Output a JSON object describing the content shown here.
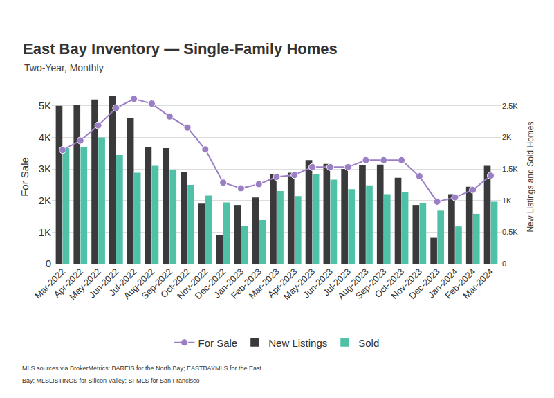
{
  "chart_data": {
    "type": "bar",
    "title": "East Bay Inventory — Single-Family Homes",
    "subtitle": "Two-Year, Monthly",
    "source_lines": [
      "MLS sources via BrokerMetrics: BAREIS for the North Bay; EASTBAYMLS for the East",
      "Bay; MLSLISTINGS for Silicon Valley; SFMLS for San Francisco"
    ],
    "ylabel": "For Sale",
    "y2label": "New Listings and Sold Homes",
    "categories": [
      "Mar-2022",
      "Apr-2022",
      "May-2022",
      "Jun-2022",
      "Jul-2022",
      "Aug-2022",
      "Sep-2022",
      "Oct-2022",
      "Nov-2022",
      "Dec-2022",
      "Jan-2023",
      "Feb-2023",
      "Mar-2023",
      "Apr-2023",
      "May-2023",
      "Jun-2023",
      "Jul-2023",
      "Aug-2023",
      "Sep-2023",
      "Oct-2023",
      "Nov-2023",
      "Dec-2023",
      "Jan-2024",
      "Feb-2024",
      "Mar-2024"
    ],
    "series": [
      {
        "name": "For Sale",
        "type": "line",
        "color": "#9b7fc4",
        "marker": "circle",
        "values": [
          3600,
          3900,
          4380,
          4930,
          5220,
          5070,
          4660,
          4310,
          3620,
          2570,
          2390,
          2520,
          2750,
          2810,
          3060,
          3060,
          3060,
          3280,
          3280,
          3280,
          2770,
          1960,
          2100,
          2340,
          2790
        ]
      },
      {
        "name": "New Listings",
        "type": "bar",
        "axis": "y2",
        "color": "#3a3a3c",
        "values": [
          2500,
          2520,
          2600,
          2660,
          2300,
          1850,
          1830,
          1450,
          950,
          460,
          930,
          1050,
          1420,
          1440,
          1640,
          1580,
          1500,
          1560,
          1570,
          1360,
          930,
          410,
          1100,
          1220,
          1550
        ]
      },
      {
        "name": "Sold",
        "type": "bar",
        "axis": "y2",
        "color": "#4fc1a6",
        "values": [
          1830,
          1850,
          2000,
          1720,
          1440,
          1550,
          1480,
          1250,
          1080,
          970,
          600,
          690,
          1150,
          1070,
          1420,
          1330,
          1180,
          1240,
          1100,
          1140,
          960,
          840,
          590,
          790,
          980
        ]
      }
    ],
    "ylim": [
      0,
      5500
    ],
    "yticks": [
      0,
      {
        "value": 1000,
        "label": "1K"
      },
      {
        "value": 2000,
        "label": "2K"
      },
      {
        "value": 3000,
        "label": "3K"
      },
      {
        "value": 4000,
        "label": "4K"
      },
      {
        "value": 5000,
        "label": "5K"
      }
    ],
    "y2lim": [
      0,
      2750
    ],
    "y2ticks": [
      0,
      {
        "value": 500,
        "label": "0.5K"
      },
      {
        "value": 1000,
        "label": "1K"
      },
      {
        "value": 1500,
        "label": "1.5K"
      },
      {
        "value": 2000,
        "label": "2K"
      },
      {
        "value": 2500,
        "label": "2.5K"
      }
    ],
    "grid": true,
    "legend": "bottom"
  }
}
